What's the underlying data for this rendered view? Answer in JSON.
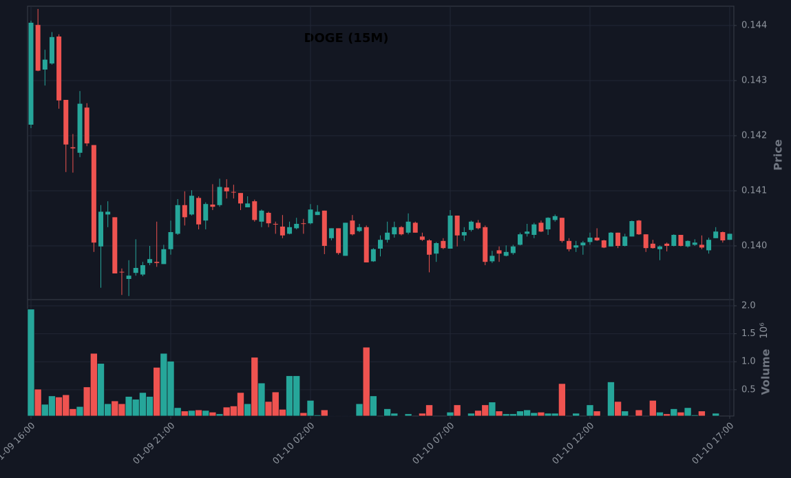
{
  "chart_data": {
    "type": "candlestick",
    "title": "DOGE (15M)",
    "categories": [
      "01-09 16:00",
      null,
      null,
      null,
      null,
      null,
      null,
      null,
      null,
      null,
      null,
      null,
      null,
      null,
      null,
      null,
      null,
      null,
      null,
      null,
      "01-09 21:00",
      null,
      null,
      null,
      null,
      null,
      null,
      null,
      null,
      null,
      null,
      null,
      null,
      null,
      null,
      null,
      null,
      null,
      null,
      null,
      "01-10 02:00",
      null,
      null,
      null,
      null,
      null,
      null,
      null,
      null,
      null,
      null,
      null,
      null,
      null,
      null,
      null,
      null,
      null,
      null,
      null,
      "01-10 07:00",
      null,
      null,
      null,
      null,
      null,
      null,
      null,
      null,
      null,
      null,
      null,
      null,
      null,
      null,
      null,
      null,
      null,
      null,
      null,
      "01-10 12:00",
      null,
      null,
      null,
      null,
      null,
      null,
      null,
      null,
      null,
      null,
      null,
      null,
      null,
      null,
      null,
      null,
      null,
      null,
      null,
      "01-10 17:00"
    ],
    "open": [
      0.1422,
      0.14401,
      0.1432,
      0.14331,
      0.1438,
      0.14265,
      0.14179,
      0.14169,
      0.14251,
      0.14183,
      0.13999,
      0.14057,
      0.14052,
      0.13953,
      0.1394,
      0.13951,
      0.13948,
      0.13969,
      0.13971,
      0.13967,
      0.13994,
      0.14022,
      0.14074,
      0.14057,
      0.14087,
      0.14046,
      0.14075,
      0.14074,
      0.14106,
      0.14098,
      0.14096,
      0.1407,
      0.14081,
      0.14044,
      0.1406,
      0.1404,
      0.14035,
      0.14022,
      0.14032,
      0.14041,
      0.14041,
      0.14056,
      0.14064,
      0.14014,
      0.14032,
      0.13982,
      0.14046,
      0.14027,
      0.14034,
      0.13972,
      0.13995,
      0.14011,
      0.14021,
      0.14034,
      0.14024,
      0.14042,
      0.14017,
      0.1401,
      0.13986,
      0.14009,
      0.13995,
      0.14055,
      0.14019,
      0.14029,
      0.14042,
      0.14034,
      0.13972,
      0.13992,
      0.13982,
      0.13987,
      0.14002,
      0.14022,
      0.1402,
      0.14042,
      0.1403,
      0.14047,
      0.14051,
      0.14009,
      0.13997,
      0.14001,
      0.14007,
      0.14015,
      0.1401,
      0.13999,
      0.14024,
      0.14,
      0.14017,
      0.14046,
      0.14021,
      0.14004,
      0.13994,
      0.14004,
      0.14,
      0.1402,
      0.13999,
      0.14002,
      0.14002,
      0.13992,
      0.14014,
      0.14025,
      0.14011
    ],
    "high": [
      0.144088,
      0.1443,
      0.14356,
      0.14388,
      0.14384,
      0.14265,
      0.14203,
      0.14281,
      0.14259,
      0.14183,
      0.14074,
      0.14081,
      0.14052,
      0.13959,
      0.13974,
      0.14012,
      0.13971,
      0.14,
      0.14044,
      0.14002,
      0.14046,
      0.14085,
      0.14099,
      0.14101,
      0.1409,
      0.14079,
      0.14112,
      0.14122,
      0.14121,
      0.14111,
      0.14096,
      0.1409,
      0.14084,
      0.14066,
      0.14062,
      0.14044,
      0.14056,
      0.14044,
      0.14051,
      0.14049,
      0.14076,
      0.14074,
      0.14064,
      0.14032,
      0.14032,
      0.14042,
      0.14056,
      0.1404,
      0.14037,
      0.13996,
      0.14019,
      0.14044,
      0.14044,
      0.14036,
      0.14059,
      0.14044,
      0.14024,
      0.14012,
      0.14007,
      0.14014,
      0.14065,
      0.14055,
      0.14034,
      0.14046,
      0.14047,
      0.14037,
      0.13991,
      0.13999,
      0.14001,
      0.14002,
      0.14024,
      0.1404,
      0.14042,
      0.14046,
      0.14052,
      0.14057,
      0.14051,
      0.14014,
      0.14009,
      0.14009,
      0.14024,
      0.14032,
      0.14011,
      0.14025,
      0.14024,
      0.14022,
      0.14046,
      0.14047,
      0.14021,
      0.14011,
      0.14001,
      0.14006,
      0.14021,
      0.1402,
      0.1401,
      0.14012,
      0.14019,
      0.14015,
      0.14034,
      0.14026,
      0.14022
    ],
    "low": [
      0.142138,
      0.14317,
      0.14291,
      0.14329,
      0.14249,
      0.14134,
      0.14133,
      0.14161,
      0.14181,
      0.13989,
      0.13924,
      0.14034,
      0.1395,
      0.13911,
      0.13909,
      0.13946,
      0.13945,
      0.13965,
      0.13962,
      0.13967,
      0.13984,
      0.1402,
      0.14037,
      0.14055,
      0.1403,
      0.1403,
      0.14065,
      0.14071,
      0.14086,
      0.14086,
      0.14065,
      0.1407,
      0.14044,
      0.14034,
      0.14034,
      0.14022,
      0.14014,
      0.14021,
      0.1403,
      0.14022,
      0.14039,
      0.14056,
      0.13985,
      0.1401,
      0.13984,
      0.13982,
      0.14019,
      0.14025,
      0.1397,
      0.13971,
      0.13981,
      0.14006,
      0.14015,
      0.14019,
      0.14021,
      0.14024,
      0.14009,
      0.13952,
      0.13971,
      0.13994,
      0.13995,
      0.13999,
      0.14009,
      0.14026,
      0.1403,
      0.13965,
      0.13969,
      0.13971,
      0.13981,
      0.13984,
      0.14001,
      0.14017,
      0.14014,
      0.14025,
      0.1402,
      0.14044,
      0.14006,
      0.1399,
      0.13989,
      0.13984,
      0.14002,
      0.14009,
      0.13996,
      0.13999,
      0.13996,
      0.13999,
      0.14017,
      0.1402,
      0.13989,
      0.13995,
      0.13974,
      0.1399,
      0.13999,
      0.13999,
      0.13997,
      0.14,
      0.13994,
      0.13986,
      0.14014,
      0.14006,
      0.14011
    ],
    "close": [
      0.14405,
      0.14318,
      0.14338,
      0.14379,
      0.14264,
      0.14184,
      0.14177,
      0.14258,
      0.14186,
      0.14006,
      0.14062,
      0.14062,
      0.1395,
      0.13952,
      0.13946,
      0.1396,
      0.13965,
      0.13976,
      0.13969,
      0.13994,
      0.14025,
      0.14074,
      0.14052,
      0.14091,
      0.14039,
      0.14076,
      0.14071,
      0.14107,
      0.14099,
      0.14097,
      0.14077,
      0.14077,
      0.14047,
      0.14064,
      0.14041,
      0.14039,
      0.14019,
      0.14034,
      0.1404,
      0.1404,
      0.14066,
      0.14062,
      0.14,
      0.14032,
      0.13987,
      0.14042,
      0.14021,
      0.14034,
      0.1397,
      0.13994,
      0.14011,
      0.14024,
      0.14034,
      0.14021,
      0.14044,
      0.14024,
      0.14011,
      0.13984,
      0.14005,
      0.13996,
      0.14055,
      0.14019,
      0.14025,
      0.14044,
      0.14032,
      0.13971,
      0.13982,
      0.13986,
      0.13989,
      0.13999,
      0.14021,
      0.14026,
      0.14039,
      0.14026,
      0.14051,
      0.14054,
      0.14009,
      0.13994,
      0.14001,
      0.14006,
      0.14015,
      0.1401,
      0.13997,
      0.14024,
      0.14,
      0.14017,
      0.14045,
      0.14021,
      0.13996,
      0.13996,
      0.13999,
      0.14,
      0.1402,
      0.14,
      0.14009,
      0.14006,
      0.13997,
      0.14011,
      0.14026,
      0.1401,
      0.14022
    ],
    "volume": [
      1.94,
      0.51,
      0.24,
      0.39,
      0.37,
      0.41,
      0.16,
      0.2,
      0.55,
      1.15,
      0.97,
      0.25,
      0.3,
      0.25,
      0.38,
      0.33,
      0.45,
      0.38,
      0.9,
      1.15,
      1.01,
      0.18,
      0.12,
      0.13,
      0.14,
      0.13,
      0.1,
      0.07,
      0.19,
      0.21,
      0.45,
      0.25,
      1.08,
      0.62,
      0.29,
      0.46,
      0.15,
      0.75,
      0.75,
      0.09,
      0.31,
      0.05,
      0.14,
      0.04,
      0.04,
      0.04,
      0.04,
      0.25,
      1.26,
      0.39,
      0.03,
      0.16,
      0.08,
      0.04,
      0.07,
      0.03,
      0.08,
      0.23,
      0.03,
      0.03,
      0.1,
      0.23,
      0.04,
      0.08,
      0.13,
      0.23,
      0.28,
      0.12,
      0.07,
      0.07,
      0.12,
      0.14,
      0.09,
      0.1,
      0.08,
      0.08,
      0.61,
      0.03,
      0.08,
      0.03,
      0.23,
      0.12,
      0.04,
      0.64,
      0.29,
      0.12,
      0.03,
      0.14,
      0.03,
      0.31,
      0.1,
      0.07,
      0.16,
      0.1,
      0.18,
      0.05,
      0.12,
      0.04,
      0.08,
      0.03,
      0.03
    ],
    "ylim": [
      0.139025,
      0.14435
    ],
    "yticks": [
      {
        "value": 0.14,
        "label": "0.140"
      },
      0.141,
      0.142,
      0.143,
      0.144
    ],
    "ylabel": "Price",
    "volume_ylim": [
      0.03,
      2.11
    ],
    "volume_yticks": [
      0.5,
      {
        "value": 1,
        "label": "1.0"
      },
      1.5,
      {
        "value": 2,
        "label": "2.0"
      }
    ],
    "volume_label": "Volume",
    "volume_offset": "10⁶",
    "up_color": "#26a69a",
    "down_color": "#ef5350",
    "grid": true
  }
}
